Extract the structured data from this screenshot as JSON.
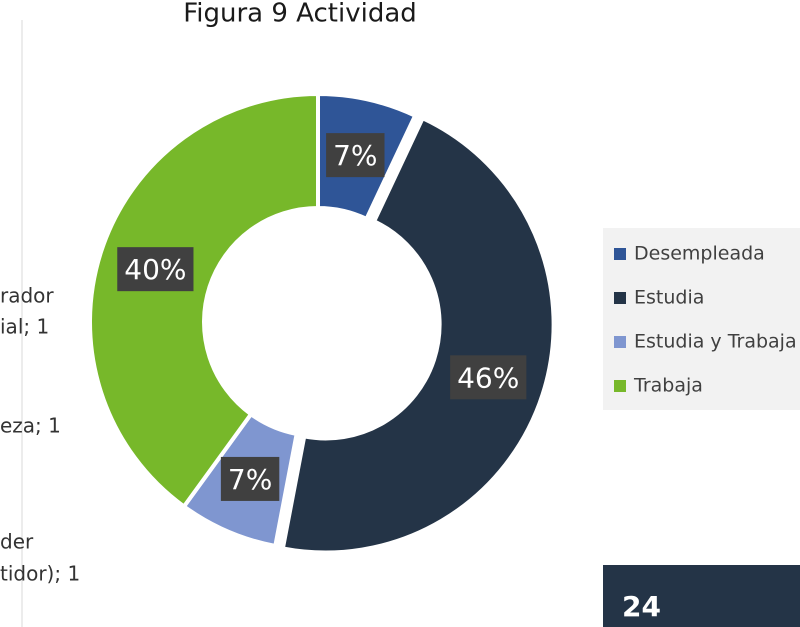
{
  "chart_data": {
    "type": "donut",
    "title": "Figura 9 Actividad",
    "categories": [
      "Desempleada",
      "Estudia",
      "Estudia y Trabaja",
      "Trabaja"
    ],
    "values": [
      7,
      46,
      7,
      40
    ],
    "value_labels": [
      "7%",
      "46%",
      "7%",
      "40%"
    ],
    "colors": [
      "#2f5597",
      "#243447",
      "#7f96d0",
      "#77b82a"
    ],
    "legend": "right"
  },
  "fragments": [
    "rador",
    "ial; 1",
    "eza; 1",
    "der",
    "tidor); 1"
  ],
  "page_number": "24"
}
